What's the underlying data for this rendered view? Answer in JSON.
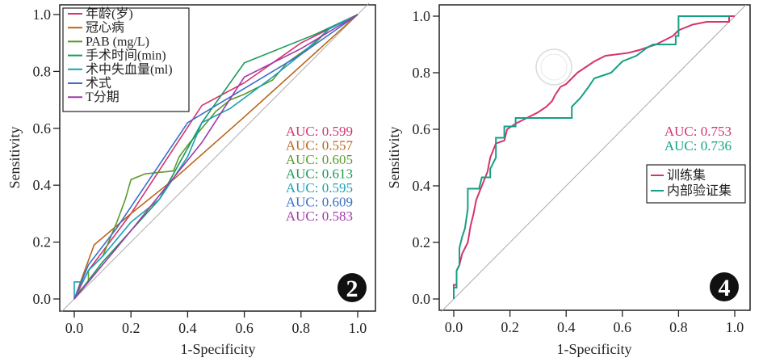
{
  "chart_data": [
    {
      "type": "line",
      "panel_badge": "2",
      "title": "",
      "xlabel": "1-Specificity",
      "ylabel": "Sensitivity",
      "xlim": [
        0,
        1
      ],
      "ylim": [
        0,
        1
      ],
      "xticks": [
        "0.0",
        "0.2",
        "0.4",
        "0.6",
        "0.8",
        "1.0"
      ],
      "yticks": [
        "0.0",
        "0.2",
        "0.4",
        "0.6",
        "0.8",
        "1.0"
      ],
      "reference_line": "diagonal",
      "legend_position": "top-left",
      "series": [
        {
          "name": "年龄(岁)",
          "color": "#d6336c",
          "auc_label": "AUC: 0.599",
          "points": [
            [
              0,
              0
            ],
            [
              0.05,
              0.1
            ],
            [
              0.2,
              0.3
            ],
            [
              0.45,
              0.68
            ],
            [
              0.6,
              0.76
            ],
            [
              0.8,
              0.9
            ],
            [
              1,
              1
            ]
          ]
        },
        {
          "name": "冠心病",
          "color": "#b8661c",
          "auc_label": "AUC: 0.557",
          "points": [
            [
              0,
              0
            ],
            [
              0.07,
              0.19
            ],
            [
              0.2,
              0.3
            ],
            [
              0.35,
              0.42
            ],
            [
              0.6,
              0.64
            ],
            [
              1,
              1
            ]
          ]
        },
        {
          "name": "PAB (mg/L)",
          "color": "#5a9a2a",
          "auc_label": "AUC: 0.605",
          "points": [
            [
              0,
              0
            ],
            [
              0.02,
              0.03
            ],
            [
              0.05,
              0.06
            ],
            [
              0.05,
              0.1
            ],
            [
              0.1,
              0.15
            ],
            [
              0.15,
              0.27
            ],
            [
              0.18,
              0.35
            ],
            [
              0.2,
              0.42
            ],
            [
              0.25,
              0.44
            ],
            [
              0.35,
              0.45
            ],
            [
              0.37,
              0.5
            ],
            [
              0.4,
              0.54
            ],
            [
              0.45,
              0.6
            ],
            [
              0.5,
              0.66
            ],
            [
              0.55,
              0.7
            ],
            [
              0.6,
              0.72
            ],
            [
              0.7,
              0.77
            ],
            [
              0.75,
              0.83
            ],
            [
              0.85,
              0.9
            ],
            [
              0.9,
              0.95
            ],
            [
              1,
              1
            ]
          ]
        },
        {
          "name": "手术时间(min)",
          "color": "#1a9a5a",
          "auc_label": "AUC: 0.613",
          "points": [
            [
              0,
              0
            ],
            [
              0.1,
              0.13
            ],
            [
              0.3,
              0.35
            ],
            [
              0.45,
              0.62
            ],
            [
              0.6,
              0.83
            ],
            [
              0.85,
              0.93
            ],
            [
              1,
              1
            ]
          ]
        },
        {
          "name": "术中失血量(ml)",
          "color": "#1aa0b8",
          "auc_label": "AUC: 0.595",
          "points": [
            [
              0,
              0
            ],
            [
              0,
              0.06
            ],
            [
              0.03,
              0.06
            ],
            [
              0.05,
              0.1
            ],
            [
              0.1,
              0.15
            ],
            [
              0.2,
              0.27
            ],
            [
              0.3,
              0.35
            ],
            [
              0.4,
              0.5
            ],
            [
              0.45,
              0.62
            ],
            [
              0.55,
              0.67
            ],
            [
              0.7,
              0.78
            ],
            [
              0.8,
              0.86
            ],
            [
              0.9,
              0.95
            ],
            [
              1,
              1
            ]
          ]
        },
        {
          "name": "术式",
          "color": "#3a6fc8",
          "auc_label": "AUC: 0.609",
          "points": [
            [
              0,
              0
            ],
            [
              0.05,
              0.12
            ],
            [
              0.15,
              0.25
            ],
            [
              0.4,
              0.62
            ],
            [
              0.5,
              0.68
            ],
            [
              0.8,
              0.86
            ],
            [
              1,
              1
            ]
          ]
        },
        {
          "name": "T分期",
          "color": "#a03aa8",
          "auc_label": "AUC: 0.583",
          "points": [
            [
              0,
              0
            ],
            [
              0.2,
              0.24
            ],
            [
              0.45,
              0.55
            ],
            [
              0.6,
              0.78
            ],
            [
              0.8,
              0.88
            ],
            [
              1,
              1
            ]
          ]
        }
      ]
    },
    {
      "type": "line",
      "panel_badge": "4",
      "title": "",
      "xlabel": "1-Specificity",
      "ylabel": "Sensitivity",
      "xlim": [
        0,
        1
      ],
      "ylim": [
        0,
        1
      ],
      "xticks": [
        "0.0",
        "0.2",
        "0.4",
        "0.6",
        "0.8",
        "1.0"
      ],
      "yticks": [
        "0.0",
        "0.2",
        "0.4",
        "0.6",
        "0.8",
        "1.0"
      ],
      "reference_line": "diagonal",
      "legend_position": "center-right",
      "series": [
        {
          "name": "训练集",
          "color": "#d6336c",
          "auc_label": "AUC: 0.753",
          "points": [
            [
              0,
              0
            ],
            [
              0,
              0.05
            ],
            [
              0.01,
              0.05
            ],
            [
              0.01,
              0.1
            ],
            [
              0.02,
              0.12
            ],
            [
              0.03,
              0.16
            ],
            [
              0.04,
              0.18
            ],
            [
              0.05,
              0.2
            ],
            [
              0.06,
              0.26
            ],
            [
              0.07,
              0.3
            ],
            [
              0.08,
              0.35
            ],
            [
              0.1,
              0.4
            ],
            [
              0.12,
              0.45
            ],
            [
              0.13,
              0.5
            ],
            [
              0.15,
              0.55
            ],
            [
              0.18,
              0.56
            ],
            [
              0.19,
              0.6
            ],
            [
              0.22,
              0.62
            ],
            [
              0.26,
              0.64
            ],
            [
              0.3,
              0.66
            ],
            [
              0.33,
              0.68
            ],
            [
              0.35,
              0.7
            ],
            [
              0.36,
              0.72
            ],
            [
              0.38,
              0.75
            ],
            [
              0.4,
              0.76
            ],
            [
              0.42,
              0.78
            ],
            [
              0.44,
              0.8
            ],
            [
              0.47,
              0.82
            ],
            [
              0.5,
              0.84
            ],
            [
              0.54,
              0.86
            ],
            [
              0.62,
              0.87
            ],
            [
              0.66,
              0.88
            ],
            [
              0.72,
              0.9
            ],
            [
              0.76,
              0.92
            ],
            [
              0.78,
              0.93
            ],
            [
              0.8,
              0.95
            ],
            [
              0.85,
              0.97
            ],
            [
              0.9,
              0.98
            ],
            [
              0.98,
              0.98
            ],
            [
              0.98,
              1
            ],
            [
              1,
              1
            ]
          ]
        },
        {
          "name": "内部验证集",
          "color": "#14a085",
          "auc_label": "AUC: 0.736",
          "points": [
            [
              0,
              0
            ],
            [
              0,
              0.04
            ],
            [
              0.01,
              0.04
            ],
            [
              0.01,
              0.1
            ],
            [
              0.02,
              0.12
            ],
            [
              0.02,
              0.18
            ],
            [
              0.03,
              0.22
            ],
            [
              0.04,
              0.25
            ],
            [
              0.05,
              0.32
            ],
            [
              0.05,
              0.39
            ],
            [
              0.09,
              0.39
            ],
            [
              0.1,
              0.43
            ],
            [
              0.13,
              0.43
            ],
            [
              0.13,
              0.46
            ],
            [
              0.15,
              0.5
            ],
            [
              0.15,
              0.57
            ],
            [
              0.18,
              0.57
            ],
            [
              0.18,
              0.61
            ],
            [
              0.22,
              0.61
            ],
            [
              0.22,
              0.64
            ],
            [
              0.42,
              0.64
            ],
            [
              0.42,
              0.68
            ],
            [
              0.45,
              0.71
            ],
            [
              0.48,
              0.75
            ],
            [
              0.5,
              0.78
            ],
            [
              0.56,
              0.8
            ],
            [
              0.6,
              0.84
            ],
            [
              0.65,
              0.86
            ],
            [
              0.69,
              0.89
            ],
            [
              0.71,
              0.9
            ],
            [
              0.79,
              0.9
            ],
            [
              0.79,
              0.93
            ],
            [
              0.8,
              0.93
            ],
            [
              0.8,
              1
            ],
            [
              0.98,
              1
            ]
          ]
        }
      ]
    }
  ]
}
